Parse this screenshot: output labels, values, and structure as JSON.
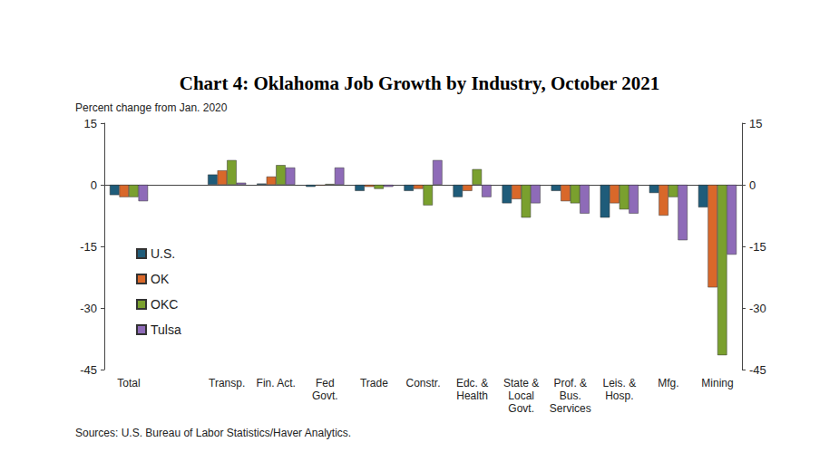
{
  "chart_data": {
    "type": "bar",
    "title": "Chart 4: Oklahoma Job Growth by Industry, October 2021",
    "ylabel": "Percent change from Jan. 2020",
    "source": "Sources: U.S. Bureau of Labor Statistics/Haver Analytics.",
    "categories": [
      "Total",
      null,
      "Transp.",
      "Fin. Act.",
      "Fed\nGovt.",
      "Trade",
      "Constr.",
      "Edc. &\nHealth",
      "State &\nLocal\nGovt.",
      "Prof. &\nBus.\nServices",
      "Leis. &\nHosp.",
      "Mfg.",
      "Mining"
    ],
    "series": [
      {
        "name": "U.S.",
        "color": "#1f5c7a",
        "values": [
          -2.5,
          null,
          2.5,
          0.3,
          -0.5,
          -1.5,
          -1.5,
          -3,
          -4.5,
          -1.5,
          -8,
          -2,
          -5.5
        ]
      },
      {
        "name": "OK",
        "color": "#d9682a",
        "values": [
          -3,
          null,
          3.5,
          2,
          -0.2,
          -0.5,
          -1,
          -1.5,
          -3.5,
          -4,
          -4.5,
          -7.5,
          -25
        ]
      },
      {
        "name": "OKC",
        "color": "#7aa02e",
        "values": [
          -3,
          null,
          6,
          4.8,
          0.2,
          -1,
          -5,
          3.8,
          -8,
          -4.5,
          -6,
          -3,
          -41.5
        ]
      },
      {
        "name": "Tulsa",
        "color": "#8e6bb8",
        "values": [
          -4,
          null,
          0.5,
          4.2,
          4.2,
          -0.5,
          6,
          -3,
          -4.5,
          -7,
          -7,
          -13.5,
          -17
        ]
      }
    ],
    "ylim": [
      -45,
      15
    ],
    "yticks": [
      -45,
      -30,
      -15,
      0,
      15
    ],
    "y2lim": [
      -45,
      15
    ],
    "y2ticks": [
      -45,
      -30,
      -15,
      0,
      15
    ],
    "grid": false,
    "legend": "left",
    "data_labels": false
  }
}
